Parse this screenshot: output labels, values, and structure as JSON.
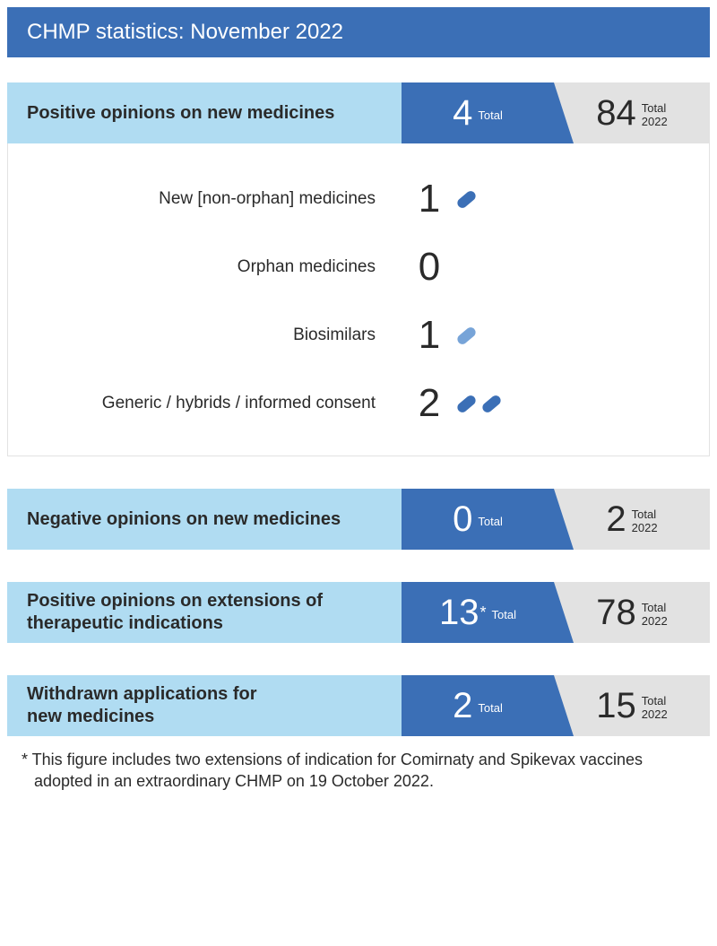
{
  "colors": {
    "title_bg": "#3b6fb6",
    "label_bg": "#b0dcf2",
    "month_bg": "#3b6fb6",
    "year_bg": "#e2e2e2",
    "pill_dark": "#3b6fb6",
    "pill_light": "#77a4d8"
  },
  "title": "CHMP statistics: November 2022",
  "sections": [
    {
      "label": "Positive opinions on new medicines",
      "month_value": "4",
      "month_sub1": "Total",
      "month_asterisk": "",
      "year_value": "84",
      "year_sub1": "Total",
      "year_sub2": "2022",
      "breakdown": [
        {
          "label": "New [non-orphan] medicines",
          "value": "1",
          "pills": [
            "dark"
          ]
        },
        {
          "label": "Orphan medicines",
          "value": "0",
          "pills": []
        },
        {
          "label": "Biosimilars",
          "value": "1",
          "pills": [
            "light"
          ]
        },
        {
          "label": "Generic / hybrids / informed consent",
          "value": "2",
          "pills": [
            "dark",
            "dark"
          ]
        }
      ]
    },
    {
      "label": "Negative opinions on new medicines",
      "month_value": "0",
      "month_sub1": "Total",
      "month_asterisk": "",
      "year_value": "2",
      "year_sub1": "Total",
      "year_sub2": "2022"
    },
    {
      "label": "Positive opinions on extensions of therapeutic indications",
      "twoline": true,
      "month_value": "13",
      "month_sub1": "Total",
      "month_asterisk": "*",
      "year_value": "78",
      "year_sub1": "Total",
      "year_sub2": "2022"
    },
    {
      "label": "Withdrawn applications for new medicines",
      "twoline": true,
      "month_value": "2",
      "month_sub1": "Total",
      "month_asterisk": "",
      "year_value": "15",
      "year_sub1": "Total",
      "year_sub2": "2022"
    }
  ],
  "footnote": "* This figure includes two extensions of indication for Comirnaty and Spikevax vaccines adopted in an extraordinary CHMP on 19 October 2022."
}
